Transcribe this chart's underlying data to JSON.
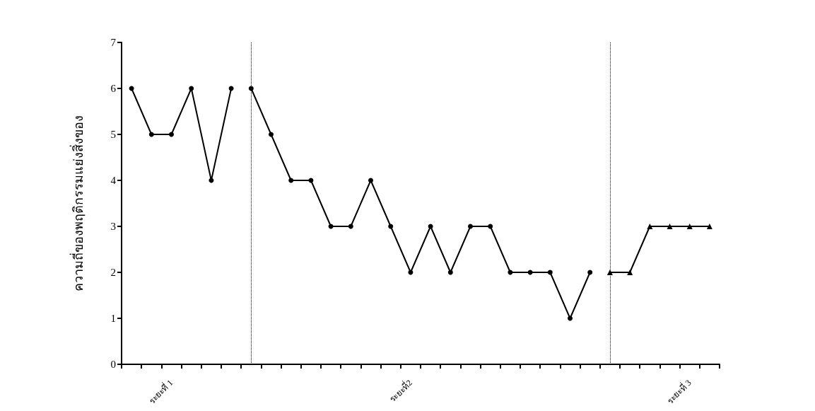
{
  "chart_data": {
    "type": "line",
    "ylabel": "ความถี่ของพฤติกรรมแย่งสิ่งของ",
    "ylim": [
      0,
      7
    ],
    "yticks": [
      0,
      1,
      2,
      3,
      4,
      5,
      6,
      7
    ],
    "categories": [
      null,
      null,
      "ระยะที่ 1",
      null,
      null,
      null,
      null,
      null,
      null,
      null,
      null,
      null,
      null,
      null,
      "ระยะที่2",
      null,
      null,
      null,
      null,
      null,
      null,
      null,
      null,
      null,
      null,
      null,
      null,
      null,
      "ระยะที่ 3",
      null
    ],
    "series": [
      {
        "color": "#000000",
        "marker": "circle",
        "values": [
          6,
          5,
          5,
          6,
          4,
          6,
          null,
          null,
          null,
          null,
          null,
          null,
          null,
          null,
          null,
          null,
          null,
          null,
          null,
          null,
          null,
          null,
          null,
          null,
          null,
          null,
          null,
          null,
          null,
          null
        ]
      },
      {
        "color": "#000000",
        "marker": "circle",
        "values": [
          null,
          null,
          null,
          null,
          null,
          null,
          6,
          5,
          4,
          4,
          3,
          3,
          4,
          3,
          2,
          3,
          2,
          3,
          3,
          2,
          2,
          2,
          1,
          2,
          null,
          null,
          null,
          null,
          null,
          null
        ]
      },
      {
        "color": "#000000",
        "marker": "triangle",
        "values": [
          null,
          null,
          null,
          null,
          null,
          null,
          null,
          null,
          null,
          null,
          null,
          null,
          null,
          null,
          null,
          null,
          null,
          null,
          null,
          null,
          null,
          null,
          null,
          null,
          2,
          2,
          3,
          3,
          3,
          3
        ]
      }
    ]
  }
}
